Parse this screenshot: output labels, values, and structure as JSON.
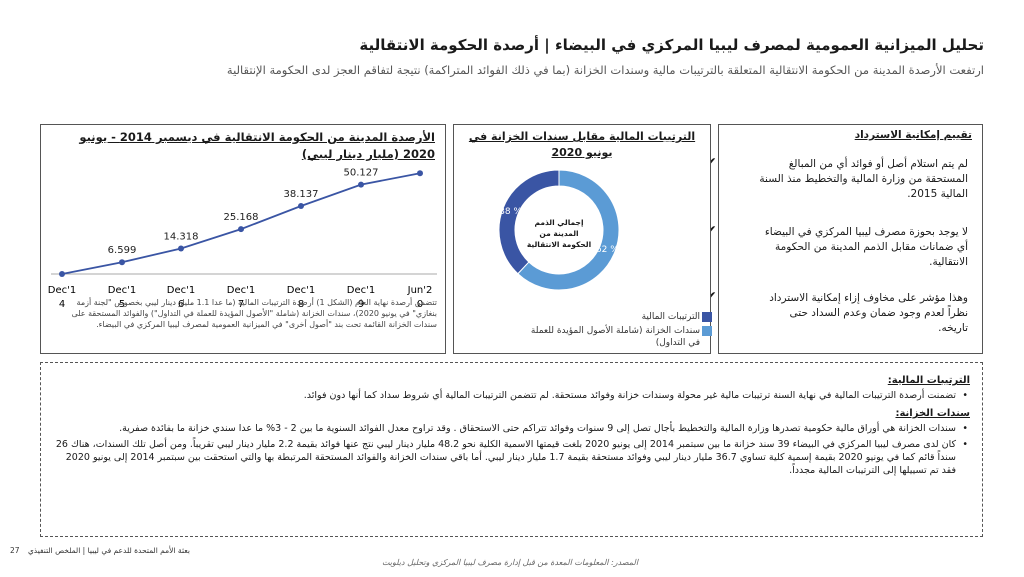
{
  "title": "تحليل الميزانية العمومية لمصرف ليبيا المركزي في البيضاء | أرصدة الحكومة الانتقالية",
  "subtitle": "ارتفعت الأرصدة المدينة من الحكومة الانتقالية المتعلقة بالترتيبات مالية وسندات الخزانة (بما في ذلك الفوائد المتراكمة) نتيجة لتفاقم العجز لدى الحكومة  الإنتقالية",
  "assessment": {
    "title": "تقييم إمكانية الاسترداد",
    "items": [
      "لم يتم استلام أصل أو فوائد أي من المبالغ المستحقة من وزارة المالية والتخطيط منذ السنة المالية 2015.",
      "لا يوجد بحوزة مصرف ليبيا المركزي في البيضاء أي ضمانات مقابل الذمم المدينة من الحكومة الانتقالية.",
      "وهذا مؤشر على مخاوف إزاء إمكانية الاسترداد نظراً لعدم وجود ضمان وعدم السداد حتى تاريخه."
    ],
    "check": "✔"
  },
  "donut": {
    "title": "الترتيبات المالية مقابل سندات الخزانة في يونيو 2020",
    "center_label": "إجمالي الذمم المدينة من الحكومة الانتقالية",
    "legend": [
      {
        "label": "الترتيبات المالية",
        "color": "#3a55a4"
      },
      {
        "label": "سندات الخزانة (شاملة الأصول المؤيدة للعملة في التداول)",
        "color": "#5b9bd5"
      }
    ],
    "chart_data": {
      "type": "pie",
      "slices": [
        {
          "name": "الترتيبات المالية",
          "value": 38,
          "label": "38 %"
        },
        {
          "name": "سندات الخزانة",
          "value": 62,
          "label": "62 %"
        }
      ]
    }
  },
  "line": {
    "title": "الأرصدة المدينة من الحكومة الانتقالية في ديسمبر 2014 - يونيو 2020 (مليار دينار ليبي)",
    "note": "تتضمن أرصدة نهاية العام (الشكل 1) أرصدة الترتيبات المالية (ما عدا 1.1 مليار دينار ليبي بخصوص \"لجنة أزمة بنغازي\" في يونيو 2020)، سندات الخزانة (شاملة \"الأصول المؤيدة للعملة في التداول\") والفوائد المستحقة على سندات الخزانة القائمة تحت بند \"أصول أخرى\" في الميزانية العمومية لمصرف ليبيا المركزي في البيضاء.",
    "chart_data": {
      "type": "line",
      "categories": [
        "Dec'14",
        "Dec'15",
        "Dec'16",
        "Dec'17",
        "Dec'18",
        "Dec'19",
        "Jun'20"
      ],
      "tick_line1": [
        "Dec'1",
        "Dec'1",
        "Dec'1",
        "Dec'1",
        "Dec'1",
        "Dec'1",
        "Jun'2"
      ],
      "tick_line2": [
        "4",
        "5",
        "6",
        "7",
        "8",
        "9",
        "0"
      ],
      "values": [
        0,
        6.599,
        14.318,
        25.168,
        38.137,
        50.127,
        56.5
      ],
      "labels": [
        "",
        "6.599",
        "14.318",
        "25.168",
        "38.137",
        "50.127",
        ""
      ],
      "ylim": [
        0,
        60
      ],
      "color": "#3a55a4"
    }
  },
  "notes": {
    "section1": "الترتيبات المالية:",
    "s1_items": [
      "تضمنت أرصدة الترتيبات المالية في نهاية السنة ترتيبات مالية غير محولة وسندات خزانة وفوائد مستحقة. لم تتضمن الترتيبات المالية أي شروط سداد كما أنها دون فوائد."
    ],
    "section2": "سندات الخزانة:",
    "s2_items": [
      "سندات الخزانة هي أوراق مالية حكومية تصدرها وزارة المالية والتخطيط بأجال تصل إلى 9 سنوات وفوائد تتراكم حتى الاستحقاق . وقد تراوح معدل الفوائد السنوية ما بين 2 - 3% ما عدا سندي خزانة ما بفائدة صفرية.",
      "كان لدى مصرف ليبيا المركزي في البيضاء 39 سند خزانة ما بين سبتمبر 2014 إلى يونيو 2020 بلغت قيمتها الاسمية الكلية نحو 48.2 مليار دينار ليبي نتج عنها فوائد بقيمة 2.2 مليار دينار ليبي تقريباً. ومن أصل تلك السندات، هناك 26 سنداً قائم كما في يونيو 2020 بقيمة إسمية كلية تساوي 36.7 مليار دينار ليبي وفوائد مستحقة بقيمة 1.7 مليار دينار ليبي. أما باقي سندات الخزانة والفوائد المستحقة المرتبطة بها والتي استحقت بين سبتمبر 2014 إلى يونيو 2020 فقد تم تسييلها إلى الترتيبات المالية مجدداً."
    ]
  },
  "footer": {
    "left": "بعثة الأمم المتحدة للدعم في ليبيا | الملخص التنفيذي",
    "page": "27",
    "source": "المصدر: المعلومات المعدة من قبل إدارة مصرف ليبيا المركزي وتحليل ديلويت"
  }
}
